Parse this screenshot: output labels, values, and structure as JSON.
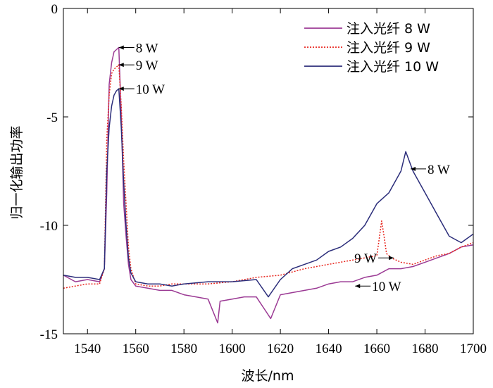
{
  "chart_data": {
    "type": "line",
    "title": "",
    "xlabel": "波长/nm",
    "ylabel": "归一化输出功率",
    "xlim": [
      1530,
      1700
    ],
    "ylim": [
      -15,
      0
    ],
    "xticks": [
      1540,
      1560,
      1580,
      1600,
      1620,
      1640,
      1660,
      1680,
      1700
    ],
    "yticks": [
      0,
      -5,
      -10,
      -15
    ],
    "grid": false,
    "legend": "top-right",
    "series": [
      {
        "name": "注入光纤  8 W",
        "color": "#9b3a94",
        "dash": "solid",
        "x": [
          1530,
          1535,
          1540,
          1545,
          1547,
          1548,
          1549,
          1550,
          1551,
          1552,
          1553,
          1554,
          1555,
          1556,
          1557,
          1558,
          1560,
          1565,
          1570,
          1575,
          1580,
          1585,
          1590,
          1594,
          1595,
          1600,
          1605,
          1610,
          1616,
          1620,
          1625,
          1630,
          1635,
          1640,
          1645,
          1650,
          1655,
          1660,
          1665,
          1670,
          1675,
          1680,
          1685,
          1690,
          1695,
          1700
        ],
        "y": [
          -12.3,
          -12.6,
          -12.5,
          -12.6,
          -12.0,
          -8.5,
          -3.5,
          -2.5,
          -2.0,
          -1.9,
          -1.8,
          -5.0,
          -9.0,
          -10.5,
          -11.8,
          -12.5,
          -12.8,
          -12.9,
          -13.0,
          -13.0,
          -13.2,
          -13.3,
          -13.4,
          -14.5,
          -13.5,
          -13.4,
          -13.3,
          -13.3,
          -14.3,
          -13.2,
          -13.1,
          -13.0,
          -12.9,
          -12.7,
          -12.6,
          -12.6,
          -12.4,
          -12.3,
          -12.0,
          -12.0,
          -11.9,
          -11.7,
          -11.5,
          -11.3,
          -11.0,
          -10.9
        ]
      },
      {
        "name": "注入光纤  9 W",
        "color": "#e8261e",
        "dash": "dotted",
        "x": [
          1530,
          1535,
          1540,
          1545,
          1547,
          1548,
          1549,
          1550,
          1551,
          1552,
          1553,
          1554,
          1555,
          1556,
          1557,
          1558,
          1560,
          1565,
          1570,
          1575,
          1580,
          1590,
          1600,
          1610,
          1620,
          1630,
          1640,
          1650,
          1655,
          1660,
          1662,
          1663,
          1664,
          1666,
          1668,
          1670,
          1675,
          1680,
          1685,
          1690,
          1695,
          1700
        ],
        "y": [
          -12.9,
          -12.8,
          -12.7,
          -12.7,
          -12.0,
          -6.0,
          -4.0,
          -3.0,
          -2.8,
          -2.7,
          -2.6,
          -4.5,
          -7.0,
          -9.0,
          -11.0,
          -12.0,
          -12.7,
          -12.8,
          -12.8,
          -12.7,
          -12.7,
          -12.7,
          -12.6,
          -12.4,
          -12.3,
          -12.0,
          -11.8,
          -11.6,
          -11.5,
          -11.4,
          -9.8,
          -10.5,
          -11.3,
          -11.5,
          -11.6,
          -11.7,
          -11.8,
          -11.6,
          -11.4,
          -11.3,
          -11.0,
          -10.8
        ]
      },
      {
        "name": "注入光纤  10 W",
        "color": "#2b2d7a",
        "dash": "solid",
        "x": [
          1530,
          1535,
          1540,
          1545,
          1547,
          1548,
          1549,
          1550,
          1551,
          1552,
          1553,
          1554,
          1555,
          1556,
          1557,
          1558,
          1560,
          1565,
          1570,
          1575,
          1580,
          1590,
          1600,
          1610,
          1615,
          1620,
          1625,
          1630,
          1635,
          1640,
          1645,
          1650,
          1655,
          1660,
          1665,
          1670,
          1672,
          1675,
          1680,
          1685,
          1690,
          1695,
          1700
        ],
        "y": [
          -12.3,
          -12.4,
          -12.4,
          -12.5,
          -12.0,
          -7.5,
          -5.5,
          -4.5,
          -4.0,
          -3.8,
          -3.7,
          -5.5,
          -8.0,
          -10.0,
          -11.5,
          -12.2,
          -12.6,
          -12.7,
          -12.7,
          -12.8,
          -12.7,
          -12.6,
          -12.6,
          -12.5,
          -13.3,
          -12.5,
          -12.0,
          -11.8,
          -11.6,
          -11.2,
          -11.0,
          -10.6,
          -10.0,
          -9.0,
          -8.5,
          -7.5,
          -6.6,
          -7.5,
          -8.5,
          -9.5,
          -10.5,
          -10.8,
          -10.4
        ]
      }
    ],
    "annotations": [
      {
        "text": "8 W",
        "x": 1553,
        "y": -1.8,
        "arrow": "left"
      },
      {
        "text": "9 W",
        "x": 1553,
        "y": -2.6,
        "arrow": "left"
      },
      {
        "text": "10 W",
        "x": 1553,
        "y": -3.7,
        "arrow": "left"
      },
      {
        "text": "8 W",
        "x": 1674,
        "y": -7.4,
        "arrow": "left"
      },
      {
        "text": "9 W",
        "x": 1667,
        "y": -11.5,
        "arrow": "right"
      },
      {
        "text": "10 W",
        "x": 1651,
        "y": -12.8,
        "arrow": "left"
      }
    ]
  }
}
